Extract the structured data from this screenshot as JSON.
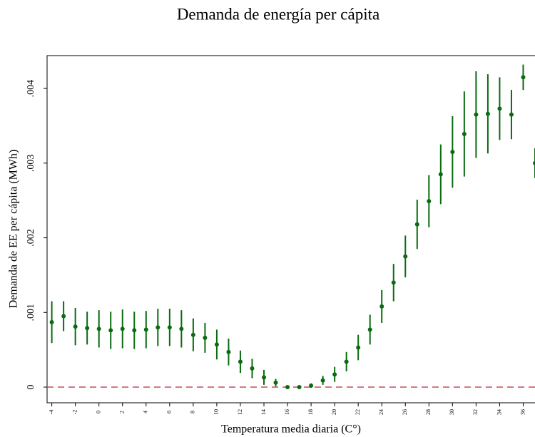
{
  "chart_data": {
    "type": "errorbar",
    "title": "Demanda de energía per cápita",
    "xlabel": "Temperatura media diaria (C°)",
    "ylabel": "Demanda de EE per cápita (MWh)",
    "x": [
      -4,
      -3,
      -2,
      -1,
      0,
      1,
      2,
      3,
      4,
      5,
      6,
      7,
      8,
      9,
      10,
      11,
      12,
      13,
      14,
      15,
      16,
      17,
      18,
      19,
      20,
      21,
      22,
      23,
      24,
      25,
      26,
      27,
      28,
      29,
      30,
      31,
      32,
      33,
      34,
      35,
      36,
      37
    ],
    "series": [
      {
        "color": "#0a6b10",
        "values": [
          0.00087,
          0.00095,
          0.00081,
          0.00079,
          0.00078,
          0.00076,
          0.00078,
          0.00076,
          0.00077,
          0.0008,
          0.0008,
          0.00078,
          0.0007,
          0.00066,
          0.00057,
          0.00047,
          0.00034,
          0.00025,
          0.00013,
          6e-05,
          0,
          0,
          2e-05,
          9e-05,
          0.00017,
          0.00034,
          0.00053,
          0.00077,
          0.00108,
          0.0014,
          0.00175,
          0.00218,
          0.00249,
          0.00285,
          0.00315,
          0.00339,
          0.00365,
          0.00366,
          0.00373,
          0.00365,
          0.00415,
          0.003
        ],
        "errors": [
          0.00028,
          0.0002,
          0.00025,
          0.00022,
          0.00025,
          0.00025,
          0.00026,
          0.00025,
          0.00025,
          0.00025,
          0.00025,
          0.00025,
          0.00022,
          0.0002,
          0.0002,
          0.00018,
          0.00015,
          0.00013,
          0.0001,
          5e-05,
          2e-05,
          2e-05,
          3e-05,
          6e-05,
          0.0001,
          0.00013,
          0.00017,
          0.0002,
          0.00022,
          0.00025,
          0.00028,
          0.00033,
          0.00035,
          0.0004,
          0.00048,
          0.00057,
          0.00058,
          0.00053,
          0.00042,
          0.00033,
          0.00017,
          0.0002
        ]
      }
    ],
    "xlim": [
      -4.4,
      37
    ],
    "ylim": [
      -0.00021,
      0.00444
    ],
    "xticks": [
      -4,
      -2,
      0,
      2,
      4,
      6,
      8,
      10,
      12,
      14,
      16,
      18,
      20,
      22,
      24,
      26,
      28,
      30,
      32,
      34,
      36
    ],
    "yticks": [
      0,
      {
        "value": 0.001,
        "label": ".001"
      },
      {
        "value": 0.002,
        "label": ".002"
      },
      {
        "value": 0.003,
        "label": ".003"
      },
      {
        "value": 0.004,
        "label": ".004"
      }
    ],
    "reference_line": {
      "y": 0,
      "color": "#c8485e"
    }
  }
}
